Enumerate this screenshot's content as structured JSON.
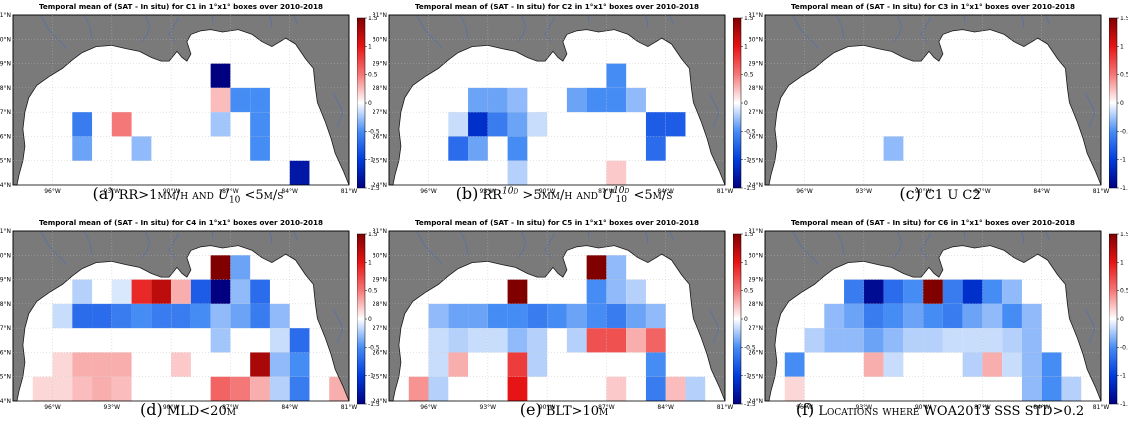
{
  "panels": [
    {
      "title": "Temporal mean of (SAT - In situ) for C1 in 1°x1° boxes over 2010-2018",
      "caption_tag": "(a)",
      "caption_parts": [
        "RR>1mm/h and ",
        "U",
        "10",
        " <5m/s"
      ],
      "cells": [
        {
          "lon": -88,
          "lat": 28,
          "v": -1.5
        },
        {
          "lon": -88,
          "lat": 27,
          "v": 0.25
        },
        {
          "lon": -88,
          "lat": 26,
          "v": -0.25
        },
        {
          "lon": -87,
          "lat": 27,
          "v": -0.5
        },
        {
          "lon": -86,
          "lat": 27,
          "v": -0.5
        },
        {
          "lon": -86,
          "lat": 26,
          "v": -0.5
        },
        {
          "lon": -86,
          "lat": 25,
          "v": -0.5
        },
        {
          "lon": -95,
          "lat": 26,
          "v": -0.6
        },
        {
          "lon": -95,
          "lat": 25,
          "v": -0.4
        },
        {
          "lon": -93,
          "lat": 26,
          "v": 0.5
        },
        {
          "lon": -92,
          "lat": 25,
          "v": -0.3
        },
        {
          "lon": -84,
          "lat": 24,
          "v": -1.3
        }
      ]
    },
    {
      "title": "Temporal mean of (SAT - In situ) for C2 in 1°x1° boxes over 2010-2018",
      "caption_tag": "(b)",
      "caption_parts": [
        "RR",
        "10d",
        " >5mm/h and ",
        "U",
        "10d",
        "10",
        " <5m/s"
      ],
      "cells": [
        {
          "lon": -94,
          "lat": 27,
          "v": -0.4
        },
        {
          "lon": -93,
          "lat": 27,
          "v": -0.4
        },
        {
          "lon": -92,
          "lat": 27,
          "v": -0.3
        },
        {
          "lon": -89,
          "lat": 27,
          "v": -0.4
        },
        {
          "lon": -88,
          "lat": 27,
          "v": -0.5
        },
        {
          "lon": -87,
          "lat": 27,
          "v": -0.5
        },
        {
          "lon": -86,
          "lat": 27,
          "v": -0.3
        },
        {
          "lon": -87,
          "lat": 28,
          "v": -0.5
        },
        {
          "lon": -95,
          "lat": 26,
          "v": -0.15
        },
        {
          "lon": -94,
          "lat": 26,
          "v": -1.1
        },
        {
          "lon": -93,
          "lat": 26,
          "v": -0.6
        },
        {
          "lon": -92,
          "lat": 26,
          "v": -0.4
        },
        {
          "lon": -91,
          "lat": 26,
          "v": -0.15
        },
        {
          "lon": -95,
          "lat": 25,
          "v": -0.7
        },
        {
          "lon": -94,
          "lat": 25,
          "v": -0.4
        },
        {
          "lon": -92,
          "lat": 25,
          "v": -0.5
        },
        {
          "lon": -85,
          "lat": 26,
          "v": -0.8
        },
        {
          "lon": -84,
          "lat": 26,
          "v": -0.8
        },
        {
          "lon": -85,
          "lat": 25,
          "v": -0.7
        },
        {
          "lon": -92,
          "lat": 24,
          "v": -0.2
        },
        {
          "lon": -87,
          "lat": 24,
          "v": 0.2
        }
      ]
    },
    {
      "title": "Temporal mean of (SAT - In situ) for C3 in 1°x1° boxes over 2010-2018",
      "caption_tag": "(c)",
      "caption_parts": [
        "C1 U C2"
      ],
      "cells": [
        {
          "lon": -92,
          "lat": 25,
          "v": -0.3
        }
      ]
    },
    {
      "title": "Temporal mean of (SAT - In situ) for C4 in 1°x1° boxes over 2010-2018",
      "caption_tag": "(d)",
      "caption_parts": [
        "MLD<20m"
      ],
      "cells": [
        {
          "lon": -95,
          "lat": 28,
          "v": -0.2
        },
        {
          "lon": -93,
          "lat": 28,
          "v": -0.1
        },
        {
          "lon": -92,
          "lat": 28,
          "v": 0.9
        },
        {
          "lon": -91,
          "lat": 28,
          "v": 1.2
        },
        {
          "lon": -90,
          "lat": 28,
          "v": 0.3
        },
        {
          "lon": -89,
          "lat": 28,
          "v": -0.8
        },
        {
          "lon": -88,
          "lat": 29,
          "v": 1.5
        },
        {
          "lon": -88,
          "lat": 28,
          "v": -1.5
        },
        {
          "lon": -87,
          "lat": 29,
          "v": -0.4
        },
        {
          "lon": -87,
          "lat": 28,
          "v": -0.3
        },
        {
          "lon": -86,
          "lat": 28,
          "v": -0.7
        },
        {
          "lon": -96,
          "lat": 27,
          "v": -0.15
        },
        {
          "lon": -95,
          "lat": 27,
          "v": -0.7
        },
        {
          "lon": -94,
          "lat": 27,
          "v": -0.7
        },
        {
          "lon": -93,
          "lat": 27,
          "v": -0.6
        },
        {
          "lon": -92,
          "lat": 27,
          "v": -0.5
        },
        {
          "lon": -91,
          "lat": 27,
          "v": -0.6
        },
        {
          "lon": -90,
          "lat": 27,
          "v": -0.6
        },
        {
          "lon": -89,
          "lat": 27,
          "v": -0.5
        },
        {
          "lon": -88,
          "lat": 27,
          "v": -0.3
        },
        {
          "lon": -87,
          "lat": 27,
          "v": -0.4
        },
        {
          "lon": -86,
          "lat": 27,
          "v": -0.6
        },
        {
          "lon": -85,
          "lat": 27,
          "v": -0.3
        },
        {
          "lon": -88,
          "lat": 26,
          "v": -0.25
        },
        {
          "lon": -85,
          "lat": 26,
          "v": -0.15
        },
        {
          "lon": -84,
          "lat": 26,
          "v": -0.7
        },
        {
          "lon": -96,
          "lat": 25,
          "v": 0.15
        },
        {
          "lon": -95,
          "lat": 25,
          "v": 0.3
        },
        {
          "lon": -94,
          "lat": 25,
          "v": 0.3
        },
        {
          "lon": -93,
          "lat": 25,
          "v": 0.3
        },
        {
          "lon": -90,
          "lat": 25,
          "v": 0.2
        },
        {
          "lon": -86,
          "lat": 25,
          "v": 1.3
        },
        {
          "lon": -85,
          "lat": 25,
          "v": -0.3
        },
        {
          "lon": -84,
          "lat": 25,
          "v": -0.5
        },
        {
          "lon": -97,
          "lat": 24,
          "v": 0.15
        },
        {
          "lon": -96,
          "lat": 24,
          "v": 0.15
        },
        {
          "lon": -95,
          "lat": 24,
          "v": 0.25
        },
        {
          "lon": -94,
          "lat": 24,
          "v": 0.3
        },
        {
          "lon": -93,
          "lat": 24,
          "v": 0.25
        },
        {
          "lon": -88,
          "lat": 24,
          "v": 0.6
        },
        {
          "lon": -87,
          "lat": 24,
          "v": 0.5
        },
        {
          "lon": -86,
          "lat": 24,
          "v": 0.3
        },
        {
          "lon": -85,
          "lat": 24,
          "v": -0.2
        },
        {
          "lon": -84,
          "lat": 24,
          "v": -0.6
        },
        {
          "lon": -82,
          "lat": 24,
          "v": 0.3
        }
      ]
    },
    {
      "title": "Temporal mean of (SAT - In situ) for C5 in 1°x1° boxes over 2010-2018",
      "caption_tag": "(e)",
      "caption_parts": [
        "BLT>10m"
      ],
      "cells": [
        {
          "lon": -92,
          "lat": 28,
          "v": 1.5
        },
        {
          "lon": -88,
          "lat": 29,
          "v": 1.5
        },
        {
          "lon": -87,
          "lat": 29,
          "v": -0.3
        },
        {
          "lon": -87,
          "lat": 28,
          "v": -0.3
        },
        {
          "lon": -88,
          "lat": 28,
          "v": -0.5
        },
        {
          "lon": -86,
          "lat": 28,
          "v": -0.2
        },
        {
          "lon": -96,
          "lat": 27,
          "v": -0.3
        },
        {
          "lon": -95,
          "lat": 27,
          "v": -0.4
        },
        {
          "lon": -94,
          "lat": 27,
          "v": -0.4
        },
        {
          "lon": -93,
          "lat": 27,
          "v": -0.5
        },
        {
          "lon": -92,
          "lat": 27,
          "v": -0.5
        },
        {
          "lon": -91,
          "lat": 27,
          "v": -0.6
        },
        {
          "lon": -90,
          "lat": 27,
          "v": -0.5
        },
        {
          "lon": -89,
          "lat": 27,
          "v": -0.4
        },
        {
          "lon": -88,
          "lat": 27,
          "v": -0.5
        },
        {
          "lon": -87,
          "lat": 27,
          "v": -0.6
        },
        {
          "lon": -86,
          "lat": 27,
          "v": -0.4
        },
        {
          "lon": -85,
          "lat": 27,
          "v": -0.3
        },
        {
          "lon": -96,
          "lat": 26,
          "v": -0.15
        },
        {
          "lon": -95,
          "lat": 26,
          "v": -0.2
        },
        {
          "lon": -94,
          "lat": 26,
          "v": -0.15
        },
        {
          "lon": -93,
          "lat": 26,
          "v": -0.15
        },
        {
          "lon": -92,
          "lat": 26,
          "v": -0.3
        },
        {
          "lon": -91,
          "lat": 26,
          "v": -0.2
        },
        {
          "lon": -89,
          "lat": 26,
          "v": -0.2
        },
        {
          "lon": -88,
          "lat": 26,
          "v": 0.7
        },
        {
          "lon": -87,
          "lat": 26,
          "v": 0.7
        },
        {
          "lon": -86,
          "lat": 26,
          "v": 0.3
        },
        {
          "lon": -85,
          "lat": 26,
          "v": 0.6
        },
        {
          "lon": -96,
          "lat": 25,
          "v": -0.15
        },
        {
          "lon": -95,
          "lat": 25,
          "v": 0.3
        },
        {
          "lon": -92,
          "lat": 25,
          "v": 0.8
        },
        {
          "lon": -91,
          "lat": 25,
          "v": -0.2
        },
        {
          "lon": -85,
          "lat": 25,
          "v": -0.5
        },
        {
          "lon": -97,
          "lat": 24,
          "v": 0.4
        },
        {
          "lon": -96,
          "lat": 24,
          "v": -0.2
        },
        {
          "lon": -92,
          "lat": 24,
          "v": 1.0
        },
        {
          "lon": -87,
          "lat": 24,
          "v": 0.2
        },
        {
          "lon": -85,
          "lat": 24,
          "v": -0.6
        },
        {
          "lon": -84,
          "lat": 24,
          "v": 0.25
        },
        {
          "lon": -83,
          "lat": 24,
          "v": -0.2
        }
      ]
    },
    {
      "title": "Temporal mean of (SAT - In situ) for C6 in 1°x1° boxes over 2010-2018",
      "caption_tag": "(f)",
      "caption_parts": [
        "Locations where WOA2013 SSS STD>0.2"
      ],
      "cells": [
        {
          "lon": -94,
          "lat": 28,
          "v": -0.6
        },
        {
          "lon": -93,
          "lat": 28,
          "v": -1.4
        },
        {
          "lon": -92,
          "lat": 28,
          "v": -0.7
        },
        {
          "lon": -91,
          "lat": 28,
          "v": -0.5
        },
        {
          "lon": -90,
          "lat": 28,
          "v": 1.5
        },
        {
          "lon": -89,
          "lat": 28,
          "v": -0.6
        },
        {
          "lon": -88,
          "lat": 28,
          "v": -1.1
        },
        {
          "lon": -87,
          "lat": 28,
          "v": -0.5
        },
        {
          "lon": -86,
          "lat": 28,
          "v": -0.3
        },
        {
          "lon": -95,
          "lat": 27,
          "v": -0.3
        },
        {
          "lon": -94,
          "lat": 27,
          "v": -0.4
        },
        {
          "lon": -93,
          "lat": 27,
          "v": -0.6
        },
        {
          "lon": -92,
          "lat": 27,
          "v": -0.5
        },
        {
          "lon": -91,
          "lat": 27,
          "v": -0.4
        },
        {
          "lon": -90,
          "lat": 27,
          "v": -0.5
        },
        {
          "lon": -89,
          "lat": 27,
          "v": -0.6
        },
        {
          "lon": -88,
          "lat": 27,
          "v": -0.4
        },
        {
          "lon": -87,
          "lat": 27,
          "v": -0.3
        },
        {
          "lon": -86,
          "lat": 27,
          "v": -0.5
        },
        {
          "lon": -85,
          "lat": 27,
          "v": -0.3
        },
        {
          "lon": -96,
          "lat": 26,
          "v": -0.2
        },
        {
          "lon": -95,
          "lat": 26,
          "v": -0.3
        },
        {
          "lon": -94,
          "lat": 26,
          "v": -0.3
        },
        {
          "lon": -93,
          "lat": 26,
          "v": -0.4
        },
        {
          "lon": -92,
          "lat": 26,
          "v": -0.3
        },
        {
          "lon": -91,
          "lat": 26,
          "v": -0.2
        },
        {
          "lon": -90,
          "lat": 26,
          "v": -0.2
        },
        {
          "lon": -89,
          "lat": 26,
          "v": -0.15
        },
        {
          "lon": -88,
          "lat": 26,
          "v": -0.15
        },
        {
          "lon": -87,
          "lat": 26,
          "v": -0.15
        },
        {
          "lon": -86,
          "lat": 26,
          "v": -0.2
        },
        {
          "lon": -85,
          "lat": 26,
          "v": -0.3
        },
        {
          "lon": -97,
          "lat": 25,
          "v": -0.5
        },
        {
          "lon": -93,
          "lat": 25,
          "v": 0.3
        },
        {
          "lon": -92,
          "lat": 25,
          "v": -0.15
        },
        {
          "lon": -88,
          "lat": 25,
          "v": -0.2
        },
        {
          "lon": -87,
          "lat": 25,
          "v": 0.3
        },
        {
          "lon": -86,
          "lat": 25,
          "v": -0.15
        },
        {
          "lon": -85,
          "lat": 25,
          "v": -0.3
        },
        {
          "lon": -84,
          "lat": 25,
          "v": -0.5
        },
        {
          "lon": -97,
          "lat": 24,
          "v": 0.15
        },
        {
          "lon": -85,
          "lat": 24,
          "v": -0.3
        },
        {
          "lon": -84,
          "lat": 24,
          "v": -0.5
        },
        {
          "lon": -83,
          "lat": 24,
          "v": -0.2
        }
      ]
    }
  ],
  "lat_ticks": [
    "24°N",
    "25°N",
    "26°N",
    "27°N",
    "28°N",
    "29°N",
    "30°N",
    "31°N"
  ],
  "lon_ticks": [
    "96°W",
    "93°W",
    "90°W",
    "87°W",
    "84°W",
    "81°W"
  ],
  "colorbar_ticks": [
    "1.5",
    "1",
    "0.5",
    "0",
    "-0.5",
    "-1",
    "-1.5"
  ],
  "colors": {
    "land": "#7a7a7a",
    "coast": "#1a1a1a",
    "river": "#4b6fb5",
    "neg_max": "#000080",
    "mid": "#ffffff",
    "pos_max": "#800000"
  },
  "chart_data": {
    "type": "heatmap",
    "colorbar_range": [
      -1.5,
      1.5
    ],
    "lon_range": [
      -98,
      -81
    ],
    "lat_range": [
      24,
      31
    ],
    "note_units": "1°x1° boxes"
  }
}
